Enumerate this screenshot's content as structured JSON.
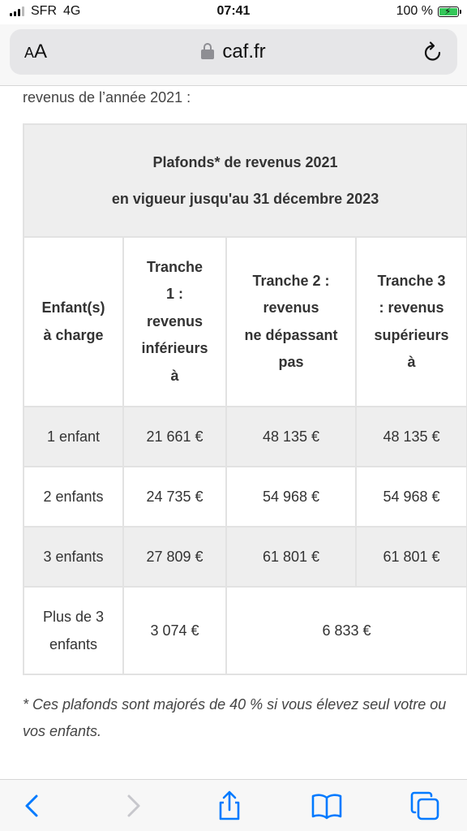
{
  "status_bar": {
    "carrier": "SFR",
    "network": "4G",
    "time": "07:41",
    "battery": "100 %",
    "battery_level": 1.0
  },
  "browser": {
    "text_size_label_small": "A",
    "text_size_label_large": "A",
    "url": "caf.fr"
  },
  "content": {
    "intro": "revenus de l’année 2021 :",
    "table": {
      "caption_line1": "Plafonds* de revenus 2021",
      "caption_line2": "en vigueur jusqu'au 31 décembre 2023",
      "headers": {
        "enfants": [
          "Enfant(s)",
          "à charge"
        ],
        "tranche1": [
          "Tranche",
          "1 :",
          "revenus",
          "inférieurs",
          "à"
        ],
        "tranche2": [
          "Tranche 2 :",
          "revenus",
          "ne dépassant",
          "pas"
        ],
        "tranche3": [
          "Tranche 3",
          ": revenus",
          "supérieurs",
          "à"
        ]
      },
      "rows": [
        {
          "label": "1 enfant",
          "t1": "21 661 €",
          "t2": "48 135 €",
          "t3": "48 135 €"
        },
        {
          "label": "2 enfants",
          "t1": "24 735 €",
          "t2": "54 968 €",
          "t3": "54 968 €"
        },
        {
          "label": "3 enfants",
          "t1": "27 809 €",
          "t2": "61 801 €",
          "t3": "61 801 €"
        }
      ],
      "last_row": {
        "label": [
          "Plus de 3",
          "enfants"
        ],
        "t1": "3 074 €",
        "t23": "6 833 €"
      }
    },
    "footnote": "* Ces plafonds sont majorés de 40 % si vous élevez seul votre ou vos enfants."
  },
  "icons": {
    "back": "chevron-left-icon",
    "forward": "chevron-right-icon",
    "share": "share-icon",
    "bookmarks": "book-icon",
    "tabs": "tabs-icon",
    "reload": "reload-icon",
    "lock": "lock-icon"
  },
  "colors": {
    "accent": "#007aff",
    "disabled": "#c7c7cc",
    "table_shade": "#eeeeee",
    "battery": "#34c759"
  }
}
